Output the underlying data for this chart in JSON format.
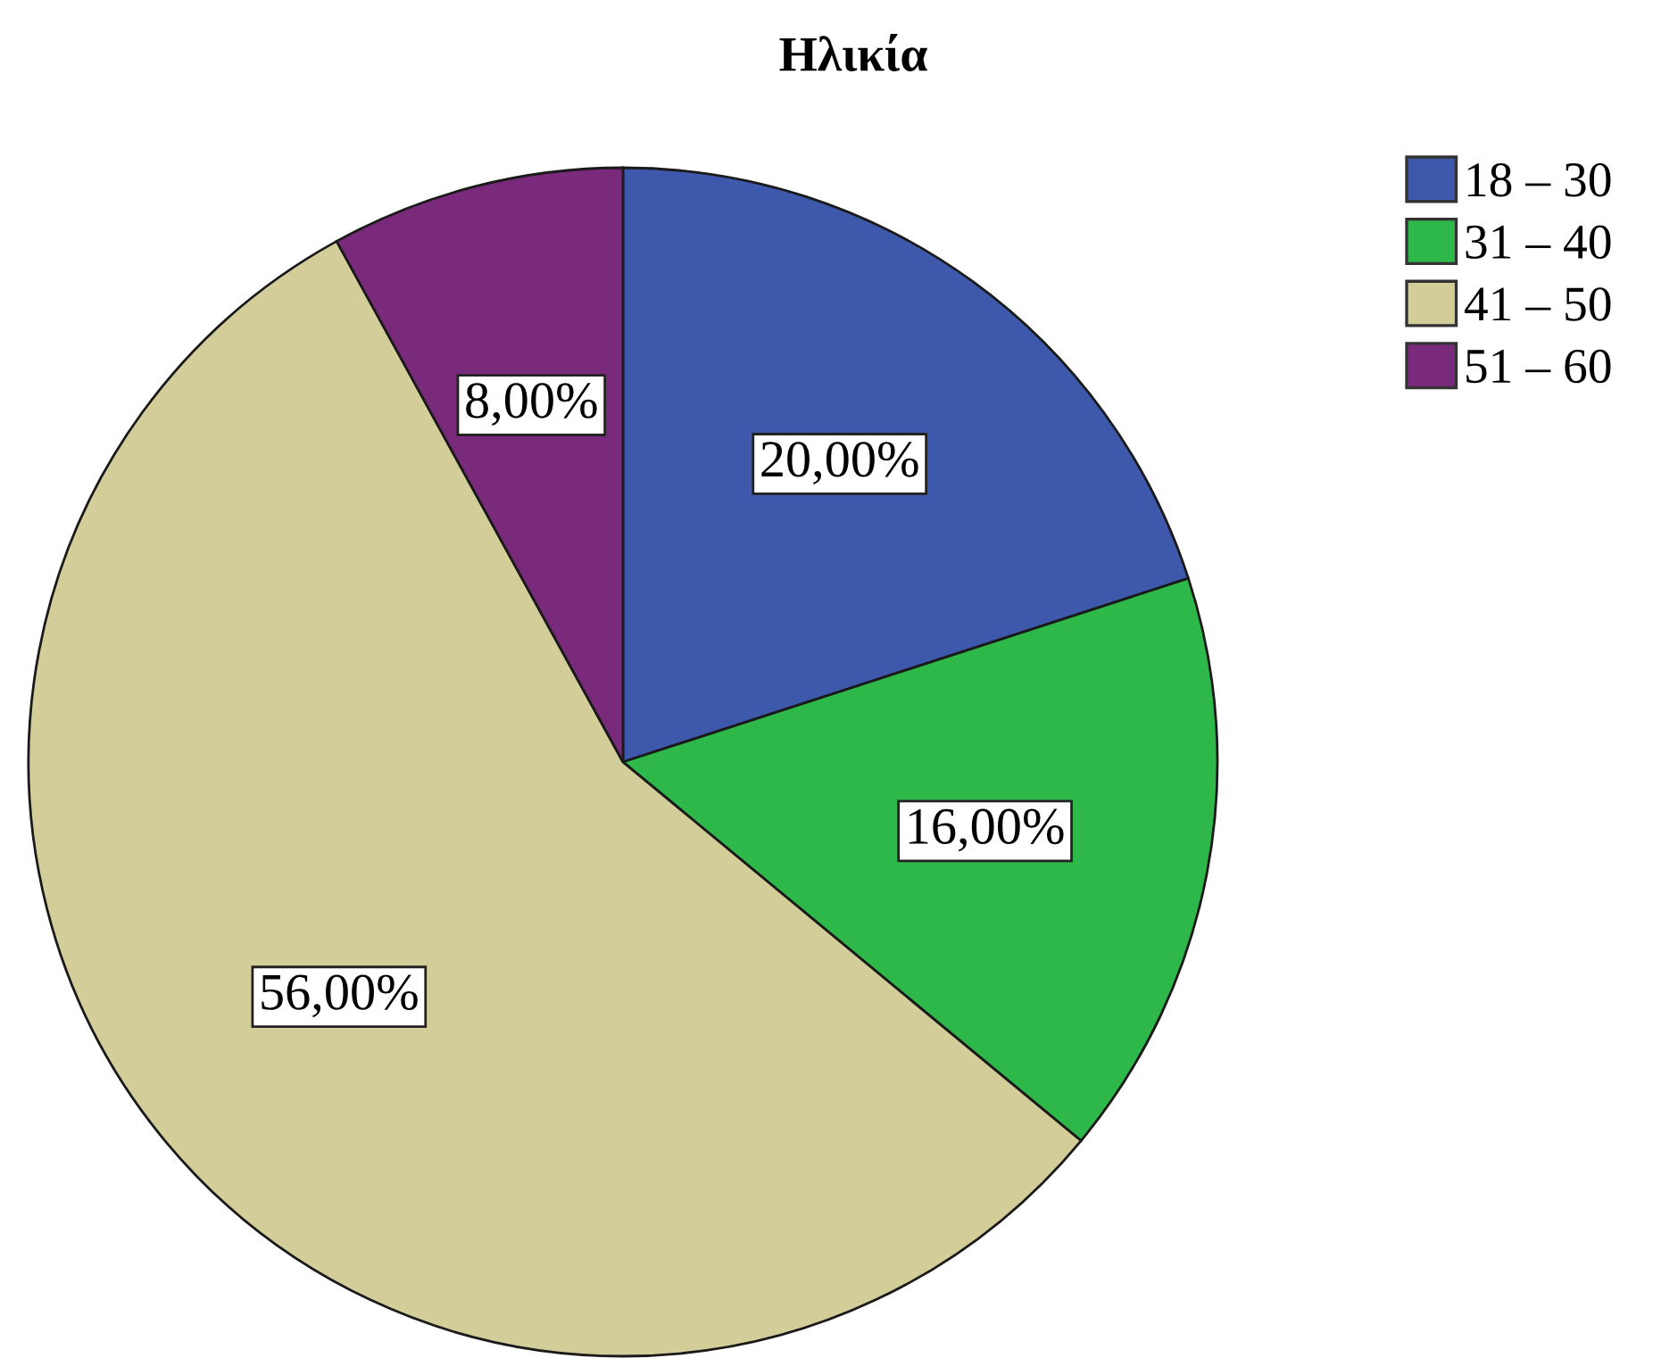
{
  "chart_data": {
    "type": "pie",
    "title": "Ηλικία",
    "categories": [
      "18 – 30",
      "31 – 40",
      "41 – 50",
      "51 – 60"
    ],
    "values": [
      20,
      16,
      56,
      8
    ],
    "colors": [
      "#3e58ac",
      "#2eb84a",
      "#d3ce99",
      "#7a2a7b"
    ],
    "value_labels": [
      "20,00%",
      "16,00%",
      "56,00%",
      "8,00%"
    ],
    "legend": "top right"
  }
}
